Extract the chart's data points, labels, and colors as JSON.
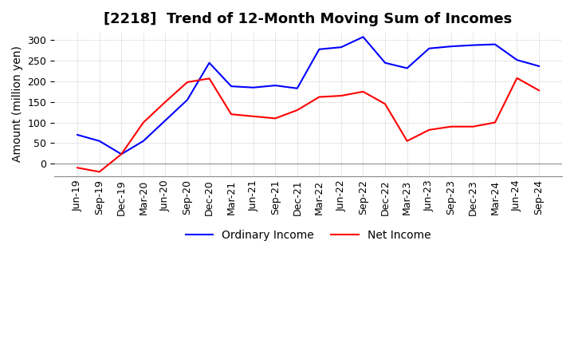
{
  "title": "[2218]  Trend of 12-Month Moving Sum of Incomes",
  "ylabel": "Amount (million yen)",
  "ylim": [
    -30,
    320
  ],
  "yticks": [
    0,
    50,
    100,
    150,
    200,
    250,
    300
  ],
  "x_labels": [
    "Jun-19",
    "Sep-19",
    "Dec-19",
    "Mar-20",
    "Jun-20",
    "Sep-20",
    "Dec-20",
    "Mar-21",
    "Jun-21",
    "Sep-21",
    "Dec-21",
    "Mar-22",
    "Jun-22",
    "Sep-22",
    "Dec-22",
    "Mar-23",
    "Jun-23",
    "Sep-23",
    "Dec-23",
    "Mar-24",
    "Jun-24",
    "Sep-24"
  ],
  "ordinary_income": [
    70,
    55,
    23,
    55,
    105,
    155,
    245,
    188,
    185,
    190,
    183,
    278,
    283,
    308,
    245,
    232,
    280,
    285,
    288,
    290,
    252,
    237
  ],
  "net_income": [
    -10,
    -20,
    23,
    100,
    150,
    198,
    207,
    120,
    115,
    110,
    130,
    162,
    165,
    175,
    145,
    55,
    82,
    90,
    90,
    100,
    208,
    178
  ],
  "ordinary_color": "#0000ff",
  "net_color": "#ff0000",
  "grid_color": "#aaaaaa",
  "background_color": "#ffffff",
  "title_fontsize": 13,
  "axis_fontsize": 10,
  "tick_fontsize": 9
}
